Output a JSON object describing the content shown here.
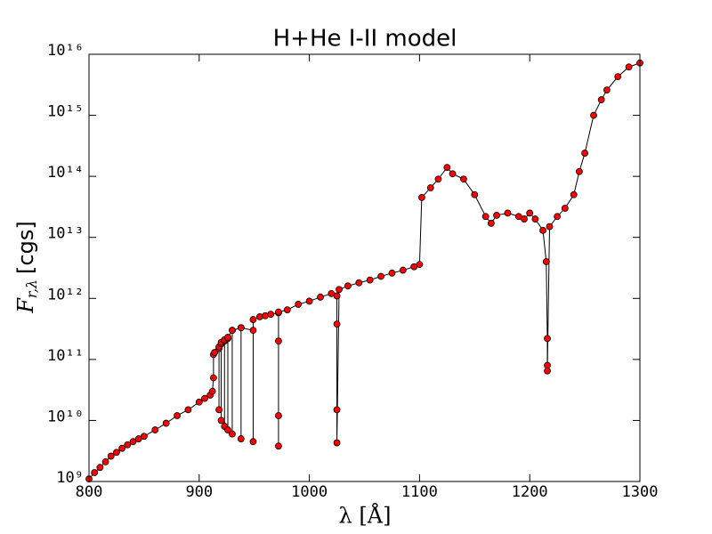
{
  "chart_data": {
    "type": "line",
    "title": "H+He I-II model",
    "x_label": "λ [Å]",
    "y_label": {
      "symbol": "F",
      "subscript": "r,λ",
      "unit": "[cgs]"
    },
    "log_y": true,
    "line_color": "#000000",
    "marker_color": "#ff0000",
    "xlim": [
      800,
      1300
    ],
    "xticks": [
      800,
      900,
      1000,
      1100,
      1200,
      1300
    ],
    "ylim": [
      1000000000.0,
      1e+16
    ],
    "yticks": [
      {
        "value": 1000000000.0,
        "label": "10⁹"
      },
      {
        "value": 10000000000.0,
        "label": "10¹⁰"
      },
      {
        "value": 100000000000.0,
        "label": "10¹¹"
      },
      {
        "value": 1000000000000.0,
        "label": "10¹²"
      },
      {
        "value": 10000000000000.0,
        "label": "10¹³"
      },
      {
        "value": 100000000000000.0,
        "label": "10¹⁴"
      },
      {
        "value": 1000000000000000.0,
        "label": "10¹⁵"
      },
      {
        "value": 1e+16,
        "label": "10¹⁶"
      }
    ],
    "x": [
      800,
      805,
      810,
      815,
      820,
      825,
      830,
      835,
      840,
      845,
      850,
      860,
      870,
      880,
      890,
      900,
      905,
      910,
      912,
      913,
      913,
      914,
      918,
      918,
      918,
      920,
      920,
      920,
      923,
      923,
      923,
      926,
      926,
      926,
      930,
      930,
      930,
      938,
      938,
      938,
      949,
      949,
      949,
      955,
      960,
      965,
      972,
      972,
      972,
      972,
      972,
      980,
      990,
      1000,
      1010,
      1020,
      1025,
      1025,
      1025,
      1025,
      1027,
      1035,
      1045,
      1055,
      1065,
      1075,
      1085,
      1095,
      1100,
      1102,
      1110,
      1117,
      1125,
      1130,
      1140,
      1150,
      1160,
      1165,
      1170,
      1180,
      1190,
      1195,
      1200,
      1205,
      1212,
      1215,
      1216,
      1216,
      1216,
      1218,
      1225,
      1232,
      1240,
      1245,
      1250,
      1258,
      1265,
      1270,
      1280,
      1290,
      1300
    ],
    "values": [
      1100000000.0,
      1400000000.0,
      1700000000.0,
      2100000000.0,
      2600000000.0,
      3000000000.0,
      3500000000.0,
      4000000000.0,
      4500000000.0,
      5000000000.0,
      5500000000.0,
      7000000000.0,
      9000000000.0,
      12000000000.0,
      15000000000.0,
      20000000000.0,
      23000000000.0,
      26000000000.0,
      30000000000.0,
      50000000000.0,
      120000000000.0,
      130000000000.0,
      150000000000.0,
      15000000000.0,
      160000000000.0,
      180000000000.0,
      10000000000.0,
      190000000000.0,
      200000000000.0,
      8000000000.0,
      210000000000.0,
      220000000000.0,
      7000000000.0,
      230000000000.0,
      300000000000.0,
      6000000000.0,
      300000000000.0,
      330000000000.0,
      5000000000.0,
      330000000000.0,
      300000000000.0,
      4500000000.0,
      450000000000.0,
      500000000000.0,
      520000000000.0,
      550000000000.0,
      580000000000.0,
      200000000000.0,
      12000000000.0,
      3800000000.0,
      600000000000.0,
      650000000000.0,
      800000000000.0,
      900000000000.0,
      1050000000000.0,
      1200000000000.0,
      1100000000000.0,
      380000000000.0,
      15000000000.0,
      4300000000.0,
      1400000000000.0,
      1600000000000.0,
      1800000000000.0,
      2000000000000.0,
      2300000000000.0,
      2600000000000.0,
      2900000000000.0,
      3300000000000.0,
      3600000000000.0,
      45000000000000.0,
      65000000000000.0,
      90000000000000.0,
      140000000000000.0,
      110000000000000.0,
      90000000000000.0,
      50000000000000.0,
      22000000000000.0,
      17000000000000.0,
      23000000000000.0,
      25000000000000.0,
      22000000000000.0,
      20000000000000.0,
      25000000000000.0,
      20000000000000.0,
      13000000000000.0,
      4000000000000.0,
      220000000000.0,
      80000000000.0,
      65000000000.0,
      15000000000000.0,
      22000000000000.0,
      30000000000000.0,
      50000000000000.0,
      120000000000000.0,
      240000000000000.0,
      1000000000000000.0,
      1800000000000000.0,
      2600000000000000.0,
      4300000000000000.0,
      6200000000000000.0,
      7200000000000000.0
    ]
  }
}
